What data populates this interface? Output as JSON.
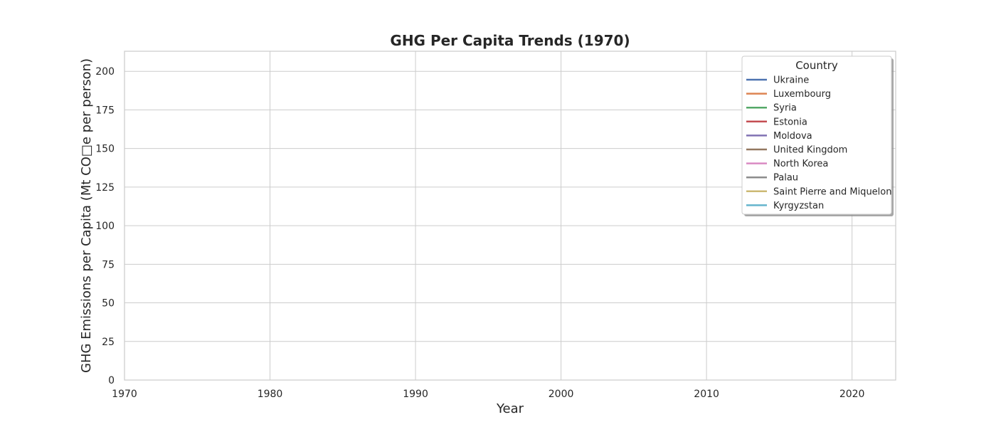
{
  "chart_data": {
    "type": "line",
    "title": "GHG Per Capita Trends (1970)",
    "xlabel": "Year",
    "ylabel": "GHG Emissions per Capita (Mt CO□e per person)",
    "xlim": [
      1970,
      2023
    ],
    "ylim": [
      0,
      213
    ],
    "x_ticks": [
      1970,
      1980,
      1990,
      2000,
      2010,
      2020
    ],
    "y_ticks": [
      0,
      25,
      50,
      75,
      100,
      125,
      150,
      175,
      200
    ],
    "grid": true,
    "legend": {
      "title": "Country",
      "placement": "top-right"
    },
    "series": [
      {
        "name": "Ukraine",
        "color": "#4c72b0",
        "x": [],
        "values": []
      },
      {
        "name": "Luxembourg",
        "color": "#dd8452",
        "x": [],
        "values": []
      },
      {
        "name": "Syria",
        "color": "#55a868",
        "x": [],
        "values": []
      },
      {
        "name": "Estonia",
        "color": "#c44e52",
        "x": [],
        "values": []
      },
      {
        "name": "Moldova",
        "color": "#8172b3",
        "x": [],
        "values": []
      },
      {
        "name": "United Kingdom",
        "color": "#937860",
        "x": [],
        "values": []
      },
      {
        "name": "North Korea",
        "color": "#da8bc3",
        "x": [],
        "values": []
      },
      {
        "name": "Palau",
        "color": "#8c8c8c",
        "x": [],
        "values": []
      },
      {
        "name": "Saint Pierre and Miquelon",
        "color": "#ccb974",
        "x": [],
        "values": []
      },
      {
        "name": "Kyrgyzstan",
        "color": "#64b5cd",
        "x": [],
        "values": []
      }
    ]
  }
}
